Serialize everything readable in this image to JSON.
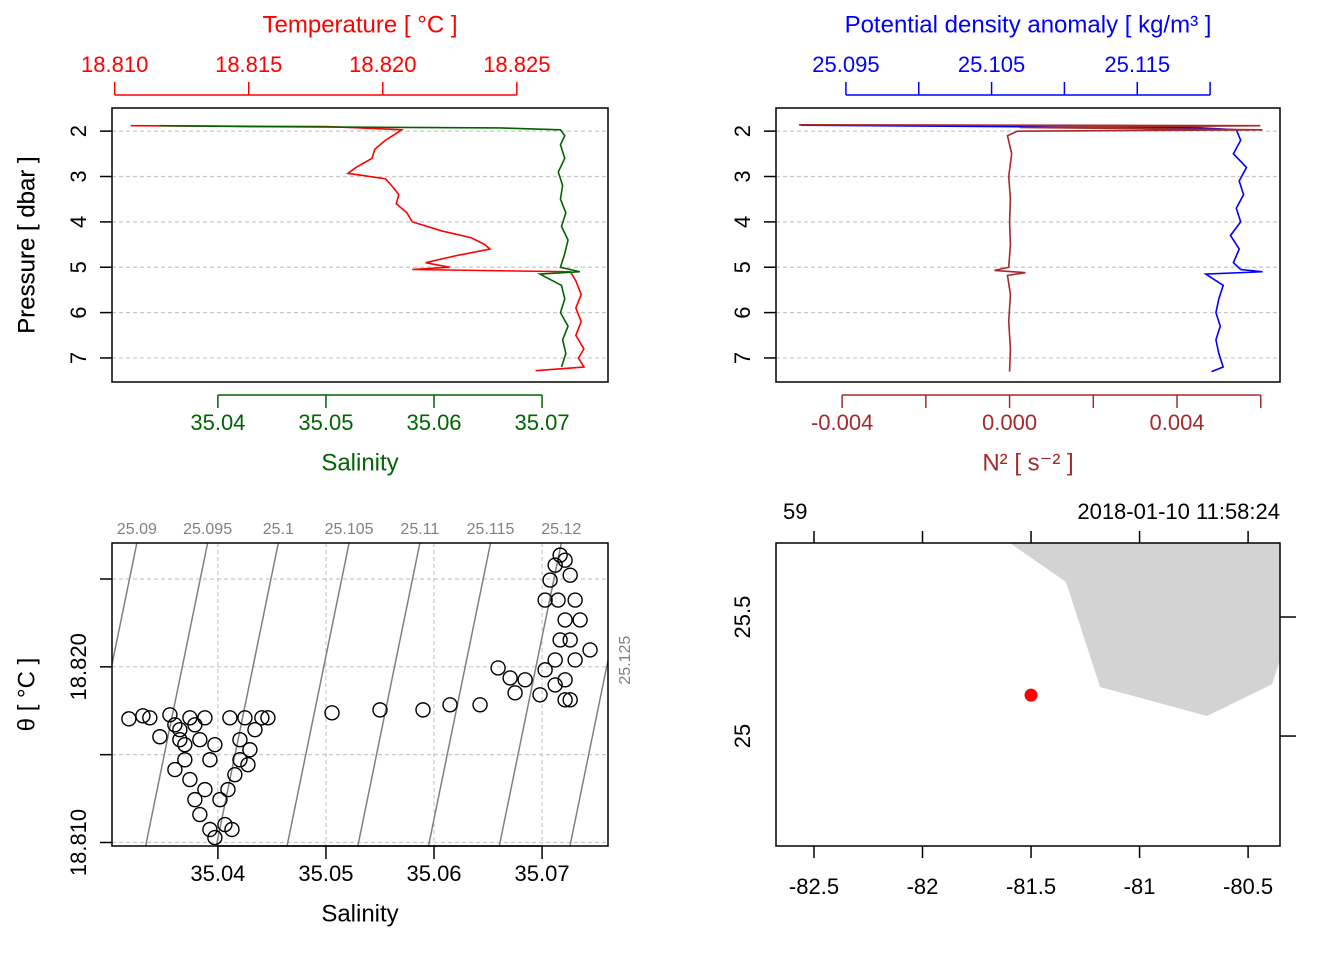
{
  "chart_data": [
    {
      "type": "profile",
      "ylabel": "Pressure [ dbar ]",
      "ylim": [
        7.53,
        1.49
      ],
      "yticks": [
        2,
        3,
        4,
        5,
        6,
        7
      ],
      "grid": true,
      "top_axis": {
        "label": "Temperature [ °C ]",
        "color": "#ff0000",
        "xlim": [
          18.8099,
          18.8284
        ],
        "xticks": [
          {
            "value": 18.81,
            "label": "18.810"
          },
          {
            "value": 18.815,
            "label": "18.815"
          },
          {
            "value": 18.82,
            "label": "18.820"
          },
          {
            "value": 18.825,
            "label": "18.825"
          }
        ]
      },
      "bottom_axis": {
        "label": "Salinity",
        "color": "#006400",
        "xlim": [
          35.0302,
          35.0761
        ],
        "xticks": [
          35.04,
          35.05,
          35.06,
          35.07
        ]
      },
      "series": [
        {
          "axis": "top",
          "color": "#ff0000",
          "x": [
            18.8106,
            18.8179,
            18.8192,
            18.8207,
            18.8205,
            18.8201,
            18.8197,
            18.8196,
            18.819,
            18.8187,
            18.8201,
            18.8204,
            18.8206,
            18.8205,
            18.8209,
            18.8211,
            18.8222,
            18.8233,
            18.8238,
            18.824,
            18.8227,
            18.8216,
            18.8225,
            18.8211,
            18.827,
            18.8272,
            18.8274,
            18.8272,
            18.8274,
            18.8272,
            18.8275,
            18.8273,
            18.8275,
            18.8257
          ],
          "y": [
            1.88,
            1.9,
            1.93,
            1.97,
            2.05,
            2.2,
            2.4,
            2.6,
            2.8,
            2.93,
            3.05,
            3.25,
            3.4,
            3.6,
            3.8,
            4.0,
            4.2,
            4.35,
            4.5,
            4.6,
            4.75,
            4.9,
            5.0,
            5.05,
            5.1,
            5.3,
            5.6,
            5.9,
            6.2,
            6.5,
            6.8,
            7.0,
            7.2,
            7.28
          ]
        },
        {
          "axis": "bottom",
          "color": "#006400",
          "x": [
            35.0346,
            35.043,
            35.0661,
            35.0717,
            35.0721,
            35.0717,
            35.0721,
            35.0715,
            35.0719,
            35.0717,
            35.0722,
            35.0718,
            35.0724,
            35.0721,
            35.0717,
            35.0735,
            35.0698,
            35.0718,
            35.0721,
            35.0717,
            35.0724,
            35.0719,
            35.0722,
            35.0718
          ],
          "y": [
            1.88,
            1.9,
            1.93,
            1.97,
            2.1,
            2.3,
            2.6,
            2.9,
            3.2,
            3.5,
            3.8,
            4.1,
            4.4,
            4.7,
            5.0,
            5.1,
            5.15,
            5.4,
            5.7,
            6.0,
            6.3,
            6.6,
            6.9,
            7.2
          ]
        }
      ]
    },
    {
      "type": "profile",
      "ylabel": "Pressure [ dbar ]",
      "ylim": [
        7.53,
        1.49
      ],
      "yticks": [
        2,
        3,
        4,
        5,
        6,
        7
      ],
      "grid": true,
      "top_axis": {
        "label": "Potential density anomaly [ kg/m³ ]",
        "color": "#0000ff",
        "xlim": [
          25.0902,
          25.1248
        ],
        "xticks": [
          25.095,
          25.105,
          25.115
        ],
        "xticks_minor": [
          25.1,
          25.11,
          25.12
        ]
      },
      "bottom_axis": {
        "label": "N² [ s⁻² ]",
        "color": "#a52a2a",
        "xlim": [
          -0.00558,
          0.00646
        ],
        "xticks": [
          {
            "value": -0.004,
            "label": "-0.004"
          },
          {
            "value": 0,
            "label": "0.000"
          },
          {
            "value": 0.004,
            "label": "0.004"
          }
        ],
        "xticks_minor": [
          -0.002,
          0.002,
          0.006
        ]
      },
      "series": [
        {
          "axis": "top",
          "color": "#0000ff",
          "x": [
            25.0919,
            25.1056,
            25.1194,
            25.1218,
            25.1221,
            25.1216,
            25.1225,
            25.122,
            25.1223,
            25.1218,
            25.1221,
            25.1214,
            25.122,
            25.1216,
            25.1221,
            25.1236,
            25.1197,
            25.1209,
            25.1206,
            25.1204,
            25.1207,
            25.1204,
            25.1206,
            25.1209,
            25.1201
          ],
          "y": [
            1.87,
            1.9,
            1.93,
            1.97,
            2.2,
            2.5,
            2.8,
            3.1,
            3.4,
            3.7,
            4.0,
            4.3,
            4.6,
            4.9,
            5.05,
            5.1,
            5.15,
            5.4,
            5.7,
            6.0,
            6.3,
            6.6,
            6.9,
            7.2,
            7.3
          ]
        },
        {
          "axis": "bottom",
          "color": "#a52a2a",
          "x": [
            -0.00503,
            0.00599,
            0.00024,
            0.00604,
            0.00019,
            -5e-05,
            5e-05,
            -2e-05,
            2e-05,
            0,
            2e-05,
            -2e-05,
            -0.00036,
            0.00038,
            -5e-05,
            2e-05,
            -2e-05,
            2e-05,
            0
          ],
          "y": [
            1.86,
            1.88,
            1.92,
            1.97,
            2.0,
            2.1,
            2.5,
            3.0,
            3.5,
            4.0,
            4.5,
            5.0,
            5.07,
            5.12,
            5.18,
            5.6,
            6.2,
            6.8,
            7.3
          ]
        }
      ]
    },
    {
      "type": "scatter",
      "xlabel": "Salinity",
      "ylabel": "θ [ °C ]",
      "grid": true,
      "xlim": [
        35.0302,
        35.0761
      ],
      "xticks": [
        35.04,
        35.05,
        35.06,
        35.07
      ],
      "ylim": [
        18.8098,
        18.82705
      ],
      "yticks": [
        {
          "value": 18.81,
          "label": "18.810"
        },
        {
          "value": 18.82,
          "label": "18.820"
        }
      ],
      "yticks_minor": [
        18.815,
        18.825
      ],
      "isopycnal_color": "#808080",
      "isopycnals": [
        {
          "level": 25.09,
          "x": [
            35.02676,
            35.0325
          ],
          "y": [
            18.8098,
            18.82705
          ]
        },
        {
          "level": 25.095,
          "x": [
            35.03331,
            35.03905
          ],
          "y": [
            18.8098,
            18.82705
          ]
        },
        {
          "level": 25.1,
          "x": [
            35.03985,
            35.04559
          ],
          "y": [
            18.8098,
            18.82705
          ]
        },
        {
          "level": 25.105,
          "x": [
            35.0464,
            35.05214
          ],
          "y": [
            18.8098,
            18.82705
          ]
        },
        {
          "level": 25.11,
          "x": [
            35.05295,
            35.05869
          ],
          "y": [
            18.8098,
            18.82705
          ]
        },
        {
          "level": 25.115,
          "x": [
            35.05949,
            35.06523
          ],
          "y": [
            18.8098,
            18.82705
          ]
        },
        {
          "level": 25.12,
          "x": [
            35.06604,
            35.07178
          ],
          "y": [
            18.8098,
            18.82705
          ]
        },
        {
          "level": 25.125,
          "x": [
            35.07258,
            35.07832
          ],
          "y": [
            18.8098,
            18.82705
          ]
        }
      ],
      "x": [
        35.03176,
        35.03306,
        35.0337,
        35.03463,
        35.03556,
        35.03602,
        35.03648,
        35.03694,
        35.03741,
        35.03787,
        35.03833,
        35.03926,
        35.03972,
        35.04065,
        35.0413,
        35.04019,
        35.04093,
        35.04157,
        35.04204,
        35.04296,
        35.04343,
        35.04407,
        35.04463,
        35.0425,
        35.04111,
        35.0388,
        35.03741,
        35.03648,
        35.03833,
        35.03926,
        35.03602,
        35.03694,
        35.03787,
        35.03972,
        35.0388,
        35.04204,
        35.04278,
        35.05056,
        35.055,
        35.05898,
        35.06148,
        35.06426,
        35.06593,
        35.06704,
        35.0675,
        35.06843,
        35.06981,
        35.07028,
        35.07121,
        35.07167,
        35.07213,
        35.07148,
        35.07028,
        35.07074,
        35.07121,
        35.07167,
        35.07213,
        35.0726,
        35.07306,
        35.07352,
        35.0726,
        35.07306,
        35.07213,
        35.0726,
        35.07444,
        35.07121,
        35.07213
      ],
      "y": [
        18.81704,
        18.81721,
        18.8171,
        18.81602,
        18.81727,
        18.8167,
        18.81585,
        18.81471,
        18.81358,
        18.81244,
        18.81159,
        18.81074,
        18.81028,
        18.81102,
        18.81074,
        18.81244,
        18.81301,
        18.81386,
        18.81471,
        18.81528,
        18.81642,
        18.8171,
        18.8171,
        18.8171,
        18.8171,
        18.8171,
        18.8171,
        18.81642,
        18.81585,
        18.81471,
        18.81415,
        18.81557,
        18.8167,
        18.81557,
        18.81301,
        18.81585,
        18.81443,
        18.81738,
        18.81755,
        18.81755,
        18.81784,
        18.81784,
        18.81994,
        18.81937,
        18.81852,
        18.81926,
        18.81841,
        18.81983,
        18.82039,
        18.82153,
        18.82267,
        18.8238,
        18.8238,
        18.82494,
        18.82579,
        18.82636,
        18.82607,
        18.82522,
        18.8238,
        18.82267,
        18.82153,
        18.82039,
        18.81926,
        18.81812,
        18.82096,
        18.81897,
        18.81812
      ]
    },
    {
      "type": "map",
      "xlim": [
        -82.675,
        -80.353
      ],
      "xticks": [
        -82.5,
        -82,
        -81.5,
        -81,
        -80.5
      ],
      "ylim": [
        24.538,
        25.811
      ],
      "yticks": [
        25,
        25.5
      ],
      "annotations": [
        "59",
        "2018-01-10 11:58:24"
      ],
      "land": {
        "color": "#d3d3d3",
        "lon": [
          -81.597,
          -81.339,
          -81.182,
          -80.689,
          -80.389,
          -80.353,
          -80.353
        ],
        "lat": [
          25.811,
          25.647,
          25.206,
          25.084,
          25.218,
          25.319,
          25.811
        ]
      },
      "station": {
        "lon": -81.5,
        "lat": 25.172,
        "color": "#ff0000"
      }
    }
  ]
}
